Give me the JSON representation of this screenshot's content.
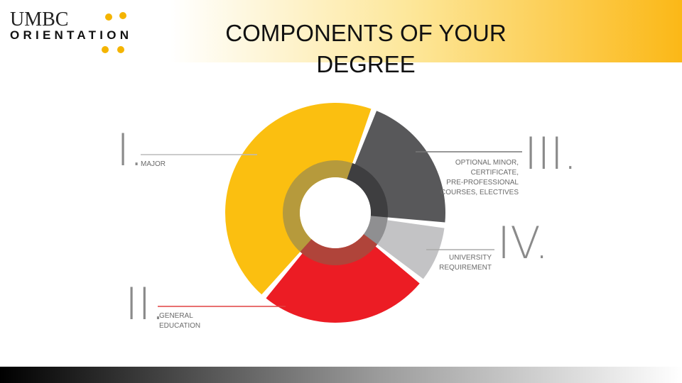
{
  "header": {
    "logo_top": "UMBC",
    "logo_bottom": "ORIENTATION",
    "title_line1": "COMPONENTS OF  YOUR",
    "title_line2": "DEGREE"
  },
  "sections": [
    {
      "numeral": "I.",
      "label_lines": [
        "MAJOR"
      ]
    },
    {
      "numeral": "II.",
      "label_lines": [
        "GENERAL",
        "EDUCATION"
      ]
    },
    {
      "numeral": "III.",
      "label_lines": [
        "OPTIONAL MINOR,",
        "CERTIFICATE,",
        "PRE-PROFESSIONAL",
        "COURSES, ELECTIVES"
      ]
    },
    {
      "numeral": "IV.",
      "label_lines": [
        "UNIVERSITY",
        "REQUIREMENT"
      ]
    }
  ]
}
